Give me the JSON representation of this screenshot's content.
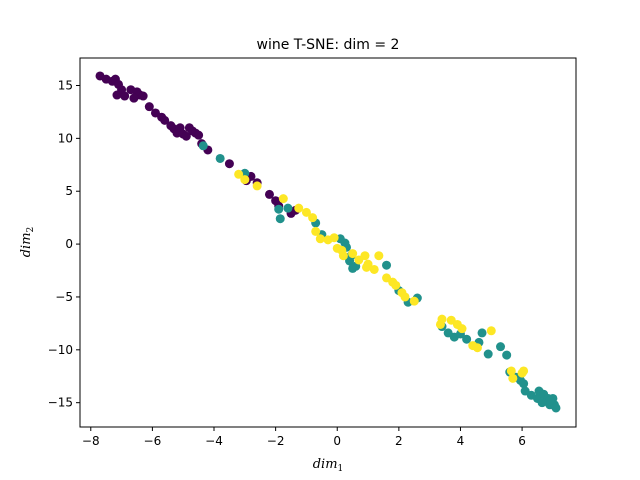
{
  "chart_data": {
    "type": "scatter",
    "title": "wine T-SNE: dim = 2",
    "xlabel": {
      "base": "dim",
      "sub": "1"
    },
    "ylabel": {
      "base": "dim",
      "sub": "2"
    },
    "xlim": [
      -8.35,
      7.75
    ],
    "ylim": [
      -17.3,
      17.6
    ],
    "xticks": [
      -8,
      -6,
      -4,
      -2,
      0,
      2,
      4,
      6
    ],
    "yticks": [
      -15,
      -10,
      -5,
      0,
      5,
      10,
      15
    ],
    "grid": false,
    "legend": "none",
    "colors": {
      "class_0": "#440154",
      "class_1": "#21918c",
      "class_2": "#fde725"
    },
    "series": [
      {
        "color": "#440154",
        "points": [
          [
            -7.7,
            15.9
          ],
          [
            -7.5,
            15.6
          ],
          [
            -7.3,
            15.4
          ],
          [
            -7.2,
            15.6
          ],
          [
            -7.1,
            15.1
          ],
          [
            -7.0,
            14.6
          ],
          [
            -7.15,
            14.1
          ],
          [
            -6.9,
            14.0
          ],
          [
            -6.7,
            14.6
          ],
          [
            -6.5,
            14.4
          ],
          [
            -6.4,
            14.1
          ],
          [
            -6.6,
            13.8
          ],
          [
            -6.3,
            14.0
          ],
          [
            -6.1,
            13.0
          ],
          [
            -5.9,
            12.4
          ],
          [
            -5.7,
            12.0
          ],
          [
            -5.6,
            11.7
          ],
          [
            -5.4,
            11.2
          ],
          [
            -5.3,
            10.9
          ],
          [
            -5.2,
            10.5
          ],
          [
            -5.1,
            11.0
          ],
          [
            -5.0,
            10.4
          ],
          [
            -4.9,
            10.2
          ],
          [
            -4.8,
            11.0
          ],
          [
            -4.7,
            10.7
          ],
          [
            -4.6,
            10.5
          ],
          [
            -4.5,
            10.3
          ],
          [
            -4.4,
            9.5
          ],
          [
            -4.2,
            8.9
          ],
          [
            -3.5,
            7.6
          ],
          [
            -2.95,
            6.0
          ],
          [
            -2.8,
            6.4
          ],
          [
            -2.6,
            5.8
          ],
          [
            -2.2,
            4.7
          ],
          [
            -2.0,
            4.1
          ],
          [
            -1.9,
            3.6
          ],
          [
            -1.5,
            2.9
          ],
          [
            -1.35,
            3.2
          ]
        ]
      },
      {
        "color": "#21918c",
        "points": [
          [
            -4.35,
            9.3
          ],
          [
            -3.8,
            8.1
          ],
          [
            -3.0,
            6.7
          ],
          [
            -1.9,
            3.3
          ],
          [
            -1.85,
            2.4
          ],
          [
            -1.6,
            3.4
          ],
          [
            -0.7,
            2.0
          ],
          [
            -0.5,
            0.9
          ],
          [
            0.1,
            0.5
          ],
          [
            0.25,
            0.1
          ],
          [
            0.3,
            -0.3
          ],
          [
            0.45,
            -1.1
          ],
          [
            0.4,
            -1.6
          ],
          [
            0.6,
            -2.1
          ],
          [
            0.5,
            -2.3
          ],
          [
            1.6,
            -2.0
          ],
          [
            2.0,
            -4.4
          ],
          [
            2.3,
            -5.5
          ],
          [
            2.6,
            -5.1
          ],
          [
            3.4,
            -7.8
          ],
          [
            3.8,
            -8.8
          ],
          [
            3.6,
            -8.4
          ],
          [
            4.0,
            -8.5
          ],
          [
            4.2,
            -9.0
          ],
          [
            4.6,
            -9.3
          ],
          [
            4.7,
            -8.4
          ],
          [
            4.9,
            -10.4
          ],
          [
            5.3,
            -9.7
          ],
          [
            5.5,
            -10.5
          ],
          [
            5.6,
            -12.1
          ],
          [
            5.8,
            -12.6
          ],
          [
            5.95,
            -12.9
          ],
          [
            6.05,
            -13.2
          ],
          [
            6.1,
            -13.9
          ],
          [
            6.3,
            -14.3
          ],
          [
            6.5,
            -14.6
          ],
          [
            6.55,
            -13.9
          ],
          [
            6.7,
            -14.2
          ],
          [
            6.85,
            -14.6
          ],
          [
            6.9,
            -15.2
          ],
          [
            7.0,
            -14.6
          ],
          [
            7.05,
            -15.2
          ],
          [
            6.9,
            -14.8
          ],
          [
            7.1,
            -15.5
          ],
          [
            6.65,
            -15.0
          ]
        ]
      },
      {
        "color": "#fde725",
        "points": [
          [
            -3.2,
            6.6
          ],
          [
            -3.0,
            6.1
          ],
          [
            -2.6,
            5.5
          ],
          [
            -1.75,
            4.3
          ],
          [
            -1.25,
            3.4
          ],
          [
            -1.0,
            3.0
          ],
          [
            -0.8,
            2.5
          ],
          [
            -0.7,
            1.2
          ],
          [
            -0.55,
            0.5
          ],
          [
            -0.3,
            0.4
          ],
          [
            -0.1,
            0.6
          ],
          [
            0.0,
            -0.4
          ],
          [
            0.15,
            -0.6
          ],
          [
            0.2,
            -1.1
          ],
          [
            0.5,
            -0.9
          ],
          [
            0.7,
            -1.5
          ],
          [
            0.9,
            -1.1
          ],
          [
            1.0,
            -1.9
          ],
          [
            0.95,
            -2.2
          ],
          [
            1.2,
            -2.4
          ],
          [
            1.35,
            -1.1
          ],
          [
            1.6,
            -3.2
          ],
          [
            1.8,
            -3.6
          ],
          [
            1.9,
            -3.9
          ],
          [
            2.1,
            -4.6
          ],
          [
            2.2,
            -5.0
          ],
          [
            2.5,
            -5.4
          ],
          [
            3.4,
            -7.1
          ],
          [
            3.35,
            -7.6
          ],
          [
            3.7,
            -7.2
          ],
          [
            3.9,
            -7.6
          ],
          [
            4.05,
            -8.0
          ],
          [
            4.4,
            -9.6
          ],
          [
            4.55,
            -9.8
          ],
          [
            5.0,
            -8.2
          ],
          [
            5.65,
            -12.0
          ],
          [
            5.7,
            -12.7
          ],
          [
            6.05,
            -12.0
          ],
          [
            6.0,
            -12.2
          ]
        ]
      }
    ]
  }
}
